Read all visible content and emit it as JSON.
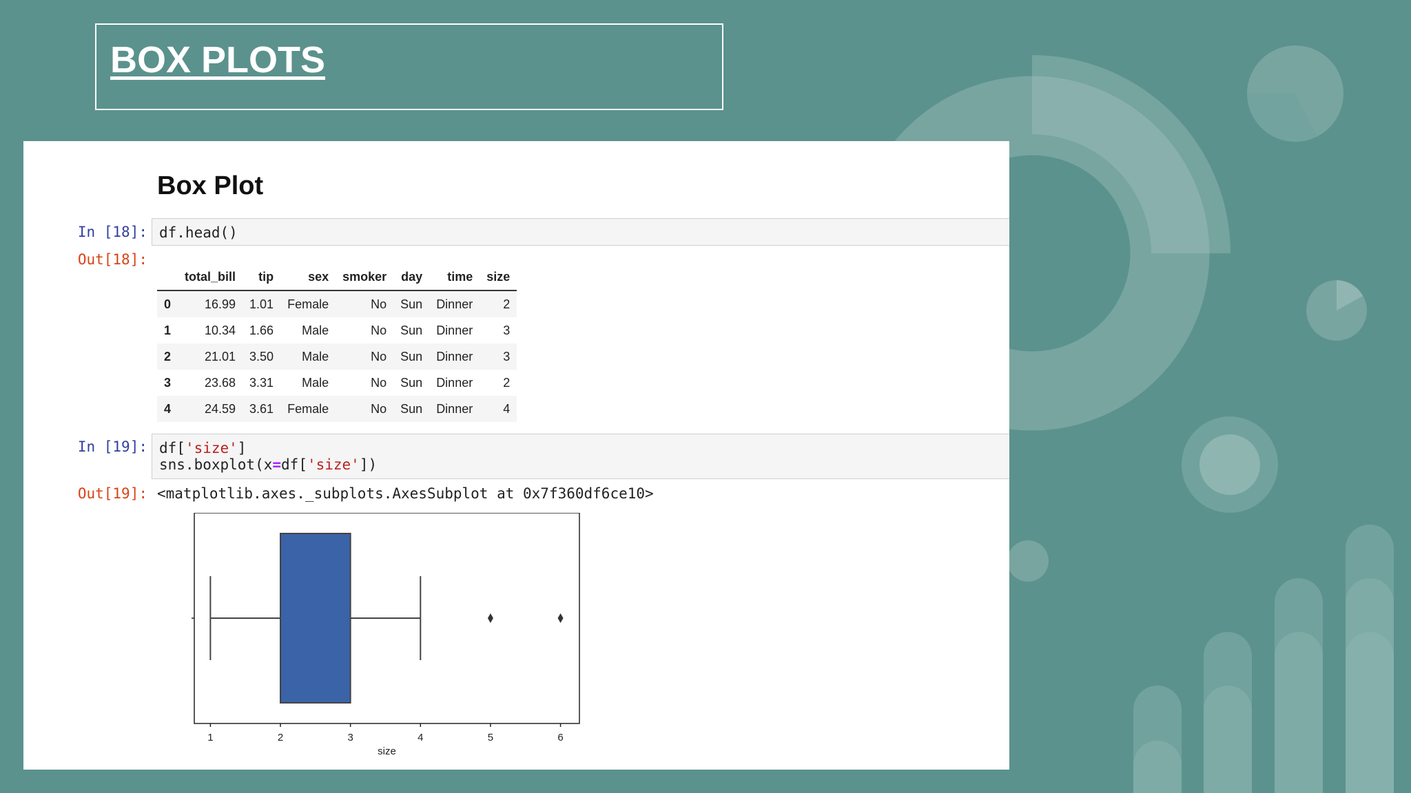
{
  "slide": {
    "title": "BOX PLOTS",
    "colors": {
      "background": "#5b928d",
      "box_fill": "#3a63a8"
    }
  },
  "notebook": {
    "heading": "Box Plot",
    "cells": [
      {
        "in_prompt": "In [18]:",
        "code": "df.head()",
        "out_prompt": "Out[18]:"
      },
      {
        "in_prompt": "In [19]:",
        "code_lines": [
          "df['size']",
          "sns.boxplot(x=df['size'])"
        ],
        "out_prompt": "Out[19]:",
        "output_text": "<matplotlib.axes._subplots.AxesSubplot at 0x7f360df6ce10>"
      }
    ],
    "table": {
      "columns": [
        "",
        "total_bill",
        "tip",
        "sex",
        "smoker",
        "day",
        "time",
        "size"
      ],
      "rows": [
        [
          "0",
          "16.99",
          "1.01",
          "Female",
          "No",
          "Sun",
          "Dinner",
          "2"
        ],
        [
          "1",
          "10.34",
          "1.66",
          "Male",
          "No",
          "Sun",
          "Dinner",
          "3"
        ],
        [
          "2",
          "21.01",
          "3.50",
          "Male",
          "No",
          "Sun",
          "Dinner",
          "3"
        ],
        [
          "3",
          "23.68",
          "3.31",
          "Male",
          "No",
          "Sun",
          "Dinner",
          "2"
        ],
        [
          "4",
          "24.59",
          "3.61",
          "Female",
          "No",
          "Sun",
          "Dinner",
          "4"
        ]
      ]
    }
  },
  "chart_data": {
    "type": "box",
    "xlabel": "size",
    "xlim": [
      0.77,
      6.27
    ],
    "xticks": [
      "1",
      "2",
      "3",
      "4",
      "5",
      "6"
    ],
    "box": {
      "whisker_low": 1,
      "q1": 2,
      "median": 2,
      "q3": 3,
      "whisker_high": 4
    },
    "outliers": [
      5,
      6
    ],
    "grid": false
  }
}
